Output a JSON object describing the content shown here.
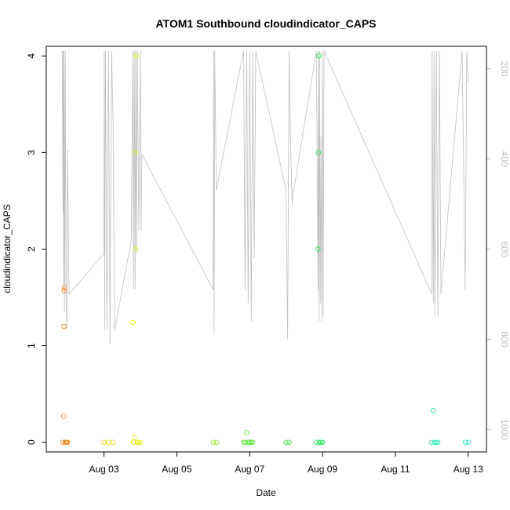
{
  "chart_data": {
    "type": "scatter",
    "title": "ATOM1 Southbound cloudindicator_CAPS",
    "xlabel": "Date",
    "ylabel": "cloudindicator_CAPS",
    "x_ticks": [
      "Aug 03",
      "Aug 05",
      "Aug 07",
      "Aug 09",
      "Aug 11",
      "Aug 13"
    ],
    "x_tick_dates": [
      "2020-08-03",
      "2020-08-05",
      "2020-08-07",
      "2020-08-09",
      "2020-08-11",
      "2020-08-13"
    ],
    "xlim": [
      "2020-08-01T10:00",
      "2020-08-13T12:00"
    ],
    "y_ticks": [
      0,
      1,
      2,
      3,
      4
    ],
    "ylim": [
      -0.1,
      4.1
    ],
    "y2_ticks": [
      200,
      400,
      600,
      800,
      1000
    ],
    "y2lim": [
      1050,
      150
    ],
    "grid": false,
    "points": [
      {
        "x": "2020-08-01T21:00",
        "y": 0,
        "color": "#f28c28"
      },
      {
        "x": "2020-08-01T21:30",
        "y": 0.27,
        "color": "#f28c28"
      },
      {
        "x": "2020-08-01T21:40",
        "y": 1.2,
        "color": "#f28c28"
      },
      {
        "x": "2020-08-01T21:45",
        "y": 1.57,
        "color": "#f28c28"
      },
      {
        "x": "2020-08-01T22:00",
        "y": 1.6,
        "color": "#f28c28"
      },
      {
        "x": "2020-08-01T22:30",
        "y": 0,
        "color": "#f28c28"
      },
      {
        "x": "2020-08-01T23:00",
        "y": 0,
        "color": "#f28c28"
      },
      {
        "x": "2020-08-01T23:30",
        "y": 0,
        "color": "#f28c28"
      },
      {
        "x": "2020-08-02T00:00",
        "y": 0,
        "color": "#f28c28"
      },
      {
        "x": "2020-08-03T00:00",
        "y": 0,
        "color": "#f5d316"
      },
      {
        "x": "2020-08-03T03:00",
        "y": 0,
        "color": "#f5d316"
      },
      {
        "x": "2020-08-03T06:00",
        "y": 0,
        "color": "#f5d316"
      },
      {
        "x": "2020-08-03T19:00",
        "y": 1.24,
        "color": "#e8ef10"
      },
      {
        "x": "2020-08-03T19:30",
        "y": 0,
        "color": "#e8ef10"
      },
      {
        "x": "2020-08-03T20:00",
        "y": 0.05,
        "color": "#e8ef10"
      },
      {
        "x": "2020-08-03T20:30",
        "y": 3.0,
        "color": "#e8ef10"
      },
      {
        "x": "2020-08-03T21:00",
        "y": 2.0,
        "color": "#e8ef10"
      },
      {
        "x": "2020-08-03T21:30",
        "y": 4.0,
        "color": "#e8ef10"
      },
      {
        "x": "2020-08-03T22:00",
        "y": 0,
        "color": "#e8ef10"
      },
      {
        "x": "2020-08-03T23:00",
        "y": 0,
        "color": "#e8ef10"
      },
      {
        "x": "2020-08-04T00:00",
        "y": 0,
        "color": "#e8ef10"
      },
      {
        "x": "2020-08-06T00:00",
        "y": 0,
        "color": "#9be82a"
      },
      {
        "x": "2020-08-06T02:00",
        "y": 0,
        "color": "#9be82a"
      },
      {
        "x": "2020-08-06T20:00",
        "y": 0,
        "color": "#5ee83a"
      },
      {
        "x": "2020-08-06T21:00",
        "y": 0,
        "color": "#5ee83a"
      },
      {
        "x": "2020-08-06T22:00",
        "y": 0.1,
        "color": "#5ee83a"
      },
      {
        "x": "2020-08-06T23:00",
        "y": 0,
        "color": "#5ee83a"
      },
      {
        "x": "2020-08-07T00:00",
        "y": 0,
        "color": "#5ee83a"
      },
      {
        "x": "2020-08-07T01:00",
        "y": 0,
        "color": "#5ee83a"
      },
      {
        "x": "2020-08-07T02:00",
        "y": 0,
        "color": "#5ee83a"
      },
      {
        "x": "2020-08-08T00:00",
        "y": 0,
        "color": "#3fe84a"
      },
      {
        "x": "2020-08-08T02:00",
        "y": 0,
        "color": "#3fe84a"
      },
      {
        "x": "2020-08-08T20:00",
        "y": 0,
        "color": "#24e85a"
      },
      {
        "x": "2020-08-08T21:00",
        "y": 2.0,
        "color": "#24e85a"
      },
      {
        "x": "2020-08-08T21:20",
        "y": 3.0,
        "color": "#24e85a"
      },
      {
        "x": "2020-08-08T21:40",
        "y": 4.0,
        "color": "#24e85a"
      },
      {
        "x": "2020-08-08T22:00",
        "y": 0,
        "color": "#24e85a"
      },
      {
        "x": "2020-08-08T23:00",
        "y": 0,
        "color": "#24e85a"
      },
      {
        "x": "2020-08-09T00:00",
        "y": 0,
        "color": "#24e85a"
      },
      {
        "x": "2020-08-12T00:00",
        "y": 0,
        "color": "#2ce8b4"
      },
      {
        "x": "2020-08-12T01:00",
        "y": 0.33,
        "color": "#2ce8b4"
      },
      {
        "x": "2020-08-12T02:00",
        "y": 0,
        "color": "#2ce8b4"
      },
      {
        "x": "2020-08-12T03:00",
        "y": 0,
        "color": "#2ce8b4"
      },
      {
        "x": "2020-08-12T04:00",
        "y": 0,
        "color": "#2ce8b4"
      },
      {
        "x": "2020-08-12T22:00",
        "y": 0,
        "color": "#2ce8d0"
      },
      {
        "x": "2020-08-13T00:00",
        "y": 0,
        "color": "#2ce8d0"
      }
    ],
    "pressure_line": {
      "color": "#bfbfbf",
      "values": [
        [
          "2020-08-01T20:30",
          160
        ],
        [
          "2020-08-01T21:00",
          520
        ],
        [
          "2020-08-01T21:10",
          160
        ],
        [
          "2020-08-01T21:30",
          690
        ],
        [
          "2020-08-01T21:40",
          160
        ],
        [
          "2020-08-01T22:00",
          740
        ],
        [
          "2020-08-01T22:30",
          160
        ],
        [
          "2020-08-01T23:00",
          700
        ],
        [
          "2020-08-01T23:30",
          780
        ],
        [
          "2020-08-02T00:00",
          380
        ],
        [
          "2020-08-02T01:00",
          700
        ],
        [
          "2020-08-03T00:00",
          610
        ],
        [
          "2020-08-03T00:10",
          160
        ],
        [
          "2020-08-03T00:30",
          780
        ],
        [
          "2020-08-03T01:00",
          160
        ],
        [
          "2020-08-03T02:00",
          780
        ],
        [
          "2020-08-03T03:00",
          160
        ],
        [
          "2020-08-03T04:00",
          810
        ],
        [
          "2020-08-03T05:00",
          160
        ],
        [
          "2020-08-03T06:00",
          310
        ],
        [
          "2020-08-03T07:00",
          780
        ],
        [
          "2020-08-03T18:00",
          580
        ],
        [
          "2020-08-03T19:00",
          160
        ],
        [
          "2020-08-03T19:30",
          690
        ],
        [
          "2020-08-03T20:00",
          160
        ],
        [
          "2020-08-03T20:30",
          690
        ],
        [
          "2020-08-03T21:00",
          160
        ],
        [
          "2020-08-03T21:30",
          610
        ],
        [
          "2020-08-03T22:00",
          160
        ],
        [
          "2020-08-03T23:00",
          560
        ],
        [
          "2020-08-04T00:00",
          160
        ],
        [
          "2020-08-04T00:30",
          560
        ],
        [
          "2020-08-04T01:00",
          390
        ],
        [
          "2020-08-06T00:00",
          690
        ],
        [
          "2020-08-06T00:10",
          160
        ],
        [
          "2020-08-06T00:30",
          790
        ],
        [
          "2020-08-06T01:00",
          160
        ],
        [
          "2020-08-06T02:00",
          470
        ],
        [
          "2020-08-06T20:00",
          160
        ],
        [
          "2020-08-06T21:00",
          690
        ],
        [
          "2020-08-06T22:00",
          160
        ],
        [
          "2020-08-06T23:00",
          720
        ],
        [
          "2020-08-07T00:00",
          160
        ],
        [
          "2020-08-07T01:00",
          760
        ],
        [
          "2020-08-07T02:00",
          160
        ],
        [
          "2020-08-07T03:00",
          620
        ],
        [
          "2020-08-07T04:00",
          160
        ],
        [
          "2020-08-08T00:00",
          470
        ],
        [
          "2020-08-08T01:00",
          800
        ],
        [
          "2020-08-08T02:00",
          160
        ],
        [
          "2020-08-08T03:00",
          380
        ],
        [
          "2020-08-08T04:00",
          500
        ],
        [
          "2020-08-08T05:00",
          470
        ],
        [
          "2020-08-08T20:00",
          160
        ],
        [
          "2020-08-08T21:00",
          690
        ],
        [
          "2020-08-08T21:20",
          160
        ],
        [
          "2020-08-08T21:40",
          760
        ],
        [
          "2020-08-08T22:00",
          160
        ],
        [
          "2020-08-08T22:30",
          720
        ],
        [
          "2020-08-08T23:00",
          350
        ],
        [
          "2020-08-08T23:30",
          760
        ],
        [
          "2020-08-09T00:00",
          160
        ],
        [
          "2020-08-09T00:30",
          750
        ],
        [
          "2020-08-09T01:00",
          160
        ],
        [
          "2020-08-12T00:00",
          700
        ],
        [
          "2020-08-12T00:10",
          160
        ],
        [
          "2020-08-12T01:00",
          720
        ],
        [
          "2020-08-12T01:30",
          160
        ],
        [
          "2020-08-12T02:00",
          750
        ],
        [
          "2020-08-12T03:00",
          160
        ],
        [
          "2020-08-12T04:00",
          750
        ],
        [
          "2020-08-12T05:00",
          160
        ],
        [
          "2020-08-12T06:00",
          700
        ],
        [
          "2020-08-12T20:00",
          160
        ],
        [
          "2020-08-12T22:00",
          690
        ],
        [
          "2020-08-12T23:00",
          160
        ],
        [
          "2020-08-13T00:00",
          230
        ]
      ]
    }
  }
}
